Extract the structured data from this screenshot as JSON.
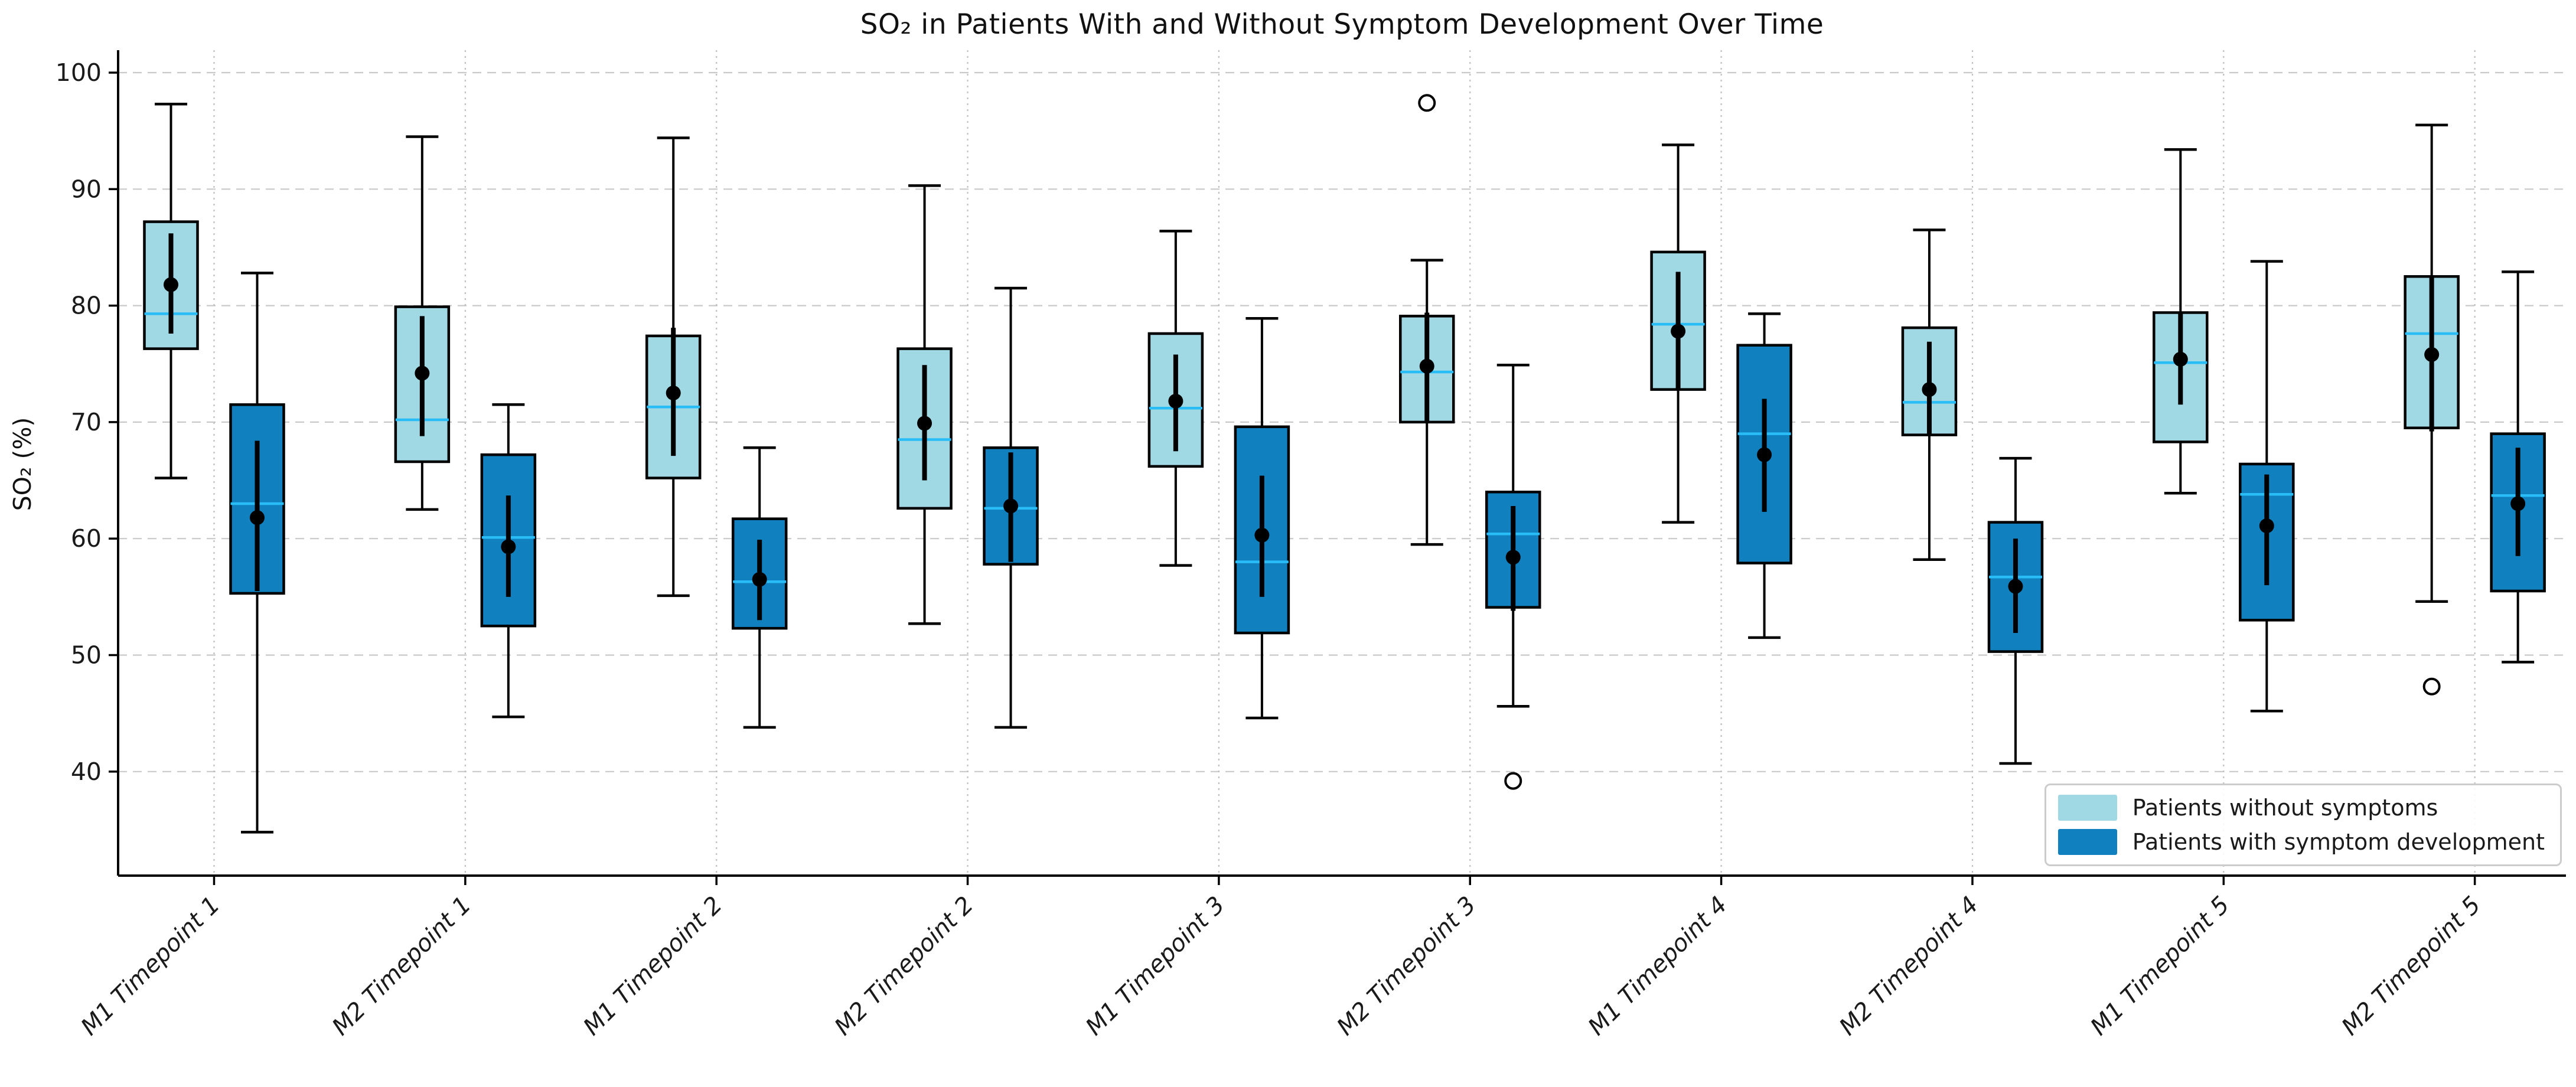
{
  "title": "SO₂ in Patients With and Without Symptom Development Over Time",
  "legend": {
    "items": [
      {
        "label": "Patients without symptoms",
        "color": "#A0D8E4"
      },
      {
        "label": "Patients with symptom development",
        "color": "#1080BE"
      }
    ]
  },
  "chart_data": {
    "type": "boxplot",
    "title": "SO₂ in Patients With and Without Symptom Development Over Time",
    "xlabel": "",
    "ylabel": "SO₂ (%)",
    "ylim": [
      31,
      102
    ],
    "yticks": [
      40,
      50,
      60,
      70,
      80,
      90,
      100
    ],
    "grid": {
      "horizontal": true,
      "vertical": true,
      "style": "dashed light gray"
    },
    "legend_position": "lower right",
    "categories": [
      "M1 Timepoint 1",
      "M2 Timepoint 1",
      "M1 Timepoint 2",
      "M2 Timepoint 2",
      "M1 Timepoint 3",
      "M2 Timepoint 3",
      "M1 Timepoint 4",
      "M2 Timepoint 4",
      "M1 Timepoint 5",
      "M2 Timepoint 5"
    ],
    "style": {
      "box_edge_color": "#000000",
      "median_color": "#29BDF8",
      "mean_marker_color": "#000000",
      "error_bar_color": "#000000",
      "gridline_color": "#c9c9c9",
      "light_fill": "#A0D8E4",
      "dark_fill": "#1080BE"
    },
    "series": [
      {
        "name": "Patients without symptoms",
        "color": "#A0D8E4",
        "boxes": [
          {
            "whislo": 65.2,
            "q1": 76.3,
            "med": 79.3,
            "mean": 81.8,
            "q3": 87.2,
            "whishi": 97.3,
            "err": [
              77.6,
              86.2
            ],
            "outliers": []
          },
          {
            "whislo": 62.5,
            "q1": 66.6,
            "med": 70.2,
            "mean": 74.2,
            "q3": 79.9,
            "whishi": 94.5,
            "err": [
              68.8,
              79.1
            ],
            "outliers": []
          },
          {
            "whislo": 55.1,
            "q1": 65.2,
            "med": 71.3,
            "mean": 72.5,
            "q3": 77.4,
            "whishi": 94.4,
            "err": [
              67.1,
              78.1
            ],
            "outliers": []
          },
          {
            "whislo": 52.7,
            "q1": 62.6,
            "med": 68.5,
            "mean": 69.9,
            "q3": 76.3,
            "whishi": 90.3,
            "err": [
              65.0,
              74.9
            ],
            "outliers": []
          },
          {
            "whislo": 57.7,
            "q1": 66.2,
            "med": 71.2,
            "mean": 71.8,
            "q3": 77.6,
            "whishi": 86.4,
            "err": [
              67.5,
              75.8
            ],
            "outliers": []
          },
          {
            "whislo": 59.5,
            "q1": 70.0,
            "med": 74.3,
            "mean": 74.8,
            "q3": 79.1,
            "whishi": 83.9,
            "err": [
              69.9,
              79.4
            ],
            "outliers": [
              97.4
            ]
          },
          {
            "whislo": 61.4,
            "q1": 72.8,
            "med": 78.4,
            "mean": 77.8,
            "q3": 84.6,
            "whishi": 93.8,
            "err": [
              72.9,
              82.9
            ],
            "outliers": []
          },
          {
            "whislo": 58.2,
            "q1": 68.9,
            "med": 71.7,
            "mean": 72.8,
            "q3": 78.1,
            "whishi": 86.5,
            "err": [
              69.0,
              76.9
            ],
            "outliers": []
          },
          {
            "whislo": 63.9,
            "q1": 68.3,
            "med": 75.1,
            "mean": 75.4,
            "q3": 79.4,
            "whishi": 93.4,
            "err": [
              71.5,
              79.3
            ],
            "outliers": []
          },
          {
            "whislo": 54.6,
            "q1": 69.5,
            "med": 77.6,
            "mean": 75.8,
            "q3": 82.5,
            "whishi": 95.5,
            "err": [
              69.2,
              82.4
            ],
            "outliers": [
              47.3
            ]
          }
        ]
      },
      {
        "name": "Patients with symptom development",
        "color": "#1080BE",
        "boxes": [
          {
            "whislo": 34.8,
            "q1": 55.3,
            "med": 63.0,
            "mean": 61.8,
            "q3": 71.5,
            "whishi": 82.8,
            "err": [
              55.5,
              68.4
            ],
            "outliers": []
          },
          {
            "whislo": 44.7,
            "q1": 52.5,
            "med": 60.1,
            "mean": 59.3,
            "q3": 67.2,
            "whishi": 71.5,
            "err": [
              55.0,
              63.7
            ],
            "outliers": []
          },
          {
            "whislo": 43.8,
            "q1": 52.3,
            "med": 56.3,
            "mean": 56.5,
            "q3": 61.7,
            "whishi": 67.8,
            "err": [
              53.0,
              59.9
            ],
            "outliers": []
          },
          {
            "whislo": 43.8,
            "q1": 57.8,
            "med": 62.6,
            "mean": 62.8,
            "q3": 67.8,
            "whishi": 81.5,
            "err": [
              58.0,
              67.4
            ],
            "outliers": []
          },
          {
            "whislo": 44.6,
            "q1": 51.9,
            "med": 58.0,
            "mean": 60.3,
            "q3": 69.6,
            "whishi": 78.9,
            "err": [
              55.0,
              65.4
            ],
            "outliers": []
          },
          {
            "whislo": 45.6,
            "q1": 54.1,
            "med": 60.4,
            "mean": 58.4,
            "q3": 64.0,
            "whishi": 74.9,
            "err": [
              53.8,
              62.8
            ],
            "outliers": [
              39.2
            ]
          },
          {
            "whislo": 51.5,
            "q1": 57.9,
            "med": 69.0,
            "mean": 67.2,
            "q3": 76.6,
            "whishi": 79.3,
            "err": [
              62.3,
              72.0
            ],
            "outliers": []
          },
          {
            "whislo": 40.7,
            "q1": 50.3,
            "med": 56.7,
            "mean": 55.9,
            "q3": 61.4,
            "whishi": 66.9,
            "err": [
              51.9,
              60.0
            ],
            "outliers": []
          },
          {
            "whislo": 45.2,
            "q1": 53.0,
            "med": 63.8,
            "mean": 61.1,
            "q3": 66.4,
            "whishi": 83.8,
            "err": [
              56.0,
              65.5
            ],
            "outliers": []
          },
          {
            "whislo": 49.4,
            "q1": 55.5,
            "med": 63.7,
            "mean": 63.0,
            "q3": 69.0,
            "whishi": 82.9,
            "err": [
              58.5,
              67.8
            ],
            "outliers": []
          }
        ]
      }
    ]
  }
}
